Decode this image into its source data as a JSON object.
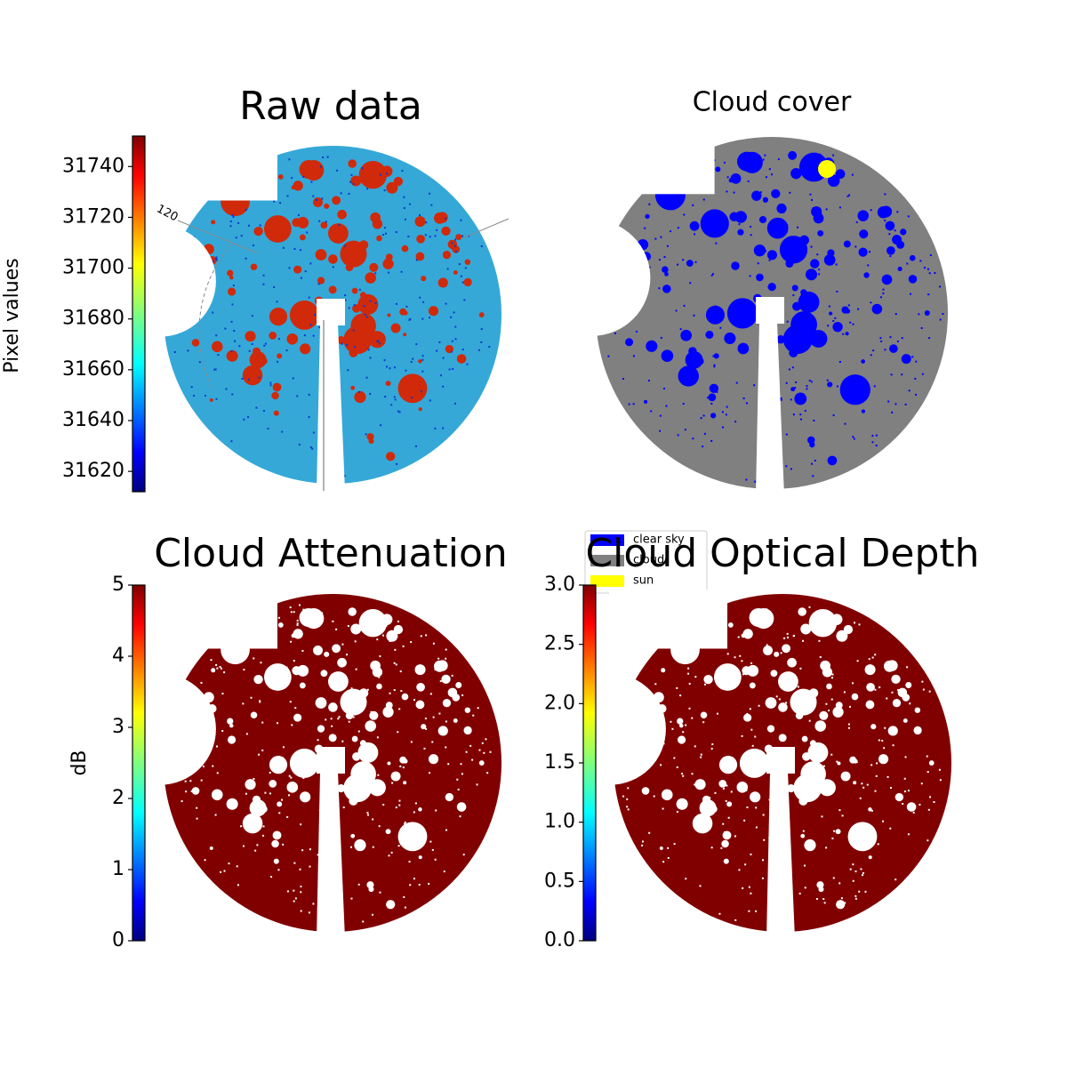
{
  "chart_data": [
    {
      "type": "image",
      "title": "Raw data",
      "ylabel": "Pixel values",
      "colormap": "jet",
      "ylim": [
        31612,
        31752
      ],
      "yticks": [
        31620,
        31640,
        31660,
        31680,
        31700,
        31720,
        31740
      ],
      "annotations": [
        "120"
      ]
    },
    {
      "type": "image",
      "title": "Cloud cover",
      "categories": [
        "clear sky",
        "cloud",
        "sun"
      ],
      "colors": [
        "#0000ff",
        "#808080",
        "#ffff00"
      ]
    },
    {
      "type": "image",
      "title": "Cloud Attenuation",
      "ylabel": "dB",
      "colormap": "jet",
      "ylim": [
        0,
        5
      ],
      "yticks": [
        0,
        1,
        2,
        3,
        4,
        5
      ]
    },
    {
      "type": "image",
      "title": "Cloud Optical Depth",
      "colormap": "jet",
      "ylim": [
        0,
        3
      ],
      "yticks": [
        {
          "value": 0,
          "label": "0.0"
        },
        {
          "value": 0.5,
          "label": "0.5"
        },
        {
          "value": 1,
          "label": "1.0"
        },
        {
          "value": 1.5,
          "label": "1.5"
        },
        {
          "value": 2,
          "label": "2.0"
        },
        {
          "value": 2.5,
          "label": "2.5"
        },
        {
          "value": 3,
          "label": "3.0"
        }
      ]
    }
  ]
}
